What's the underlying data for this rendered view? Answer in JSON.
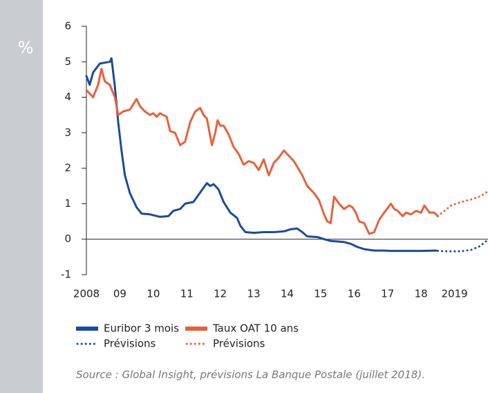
{
  "chart_data": {
    "type": "line",
    "y_label": "%",
    "source": "Source : Global Insight, prévisions La Banque Postale (juillet 2018).",
    "xlim": [
      2008,
      2020
    ],
    "xticks": [
      {
        "value": 2008,
        "label": "2008"
      },
      {
        "value": 2009,
        "label": "09"
      },
      {
        "value": 2010,
        "label": "10"
      },
      {
        "value": 2011,
        "label": "11"
      },
      {
        "value": 2012,
        "label": "12"
      },
      {
        "value": 2013,
        "label": "13"
      },
      {
        "value": 2014,
        "label": "14"
      },
      {
        "value": 2015,
        "label": "15"
      },
      {
        "value": 2016,
        "label": "16"
      },
      {
        "value": 2017,
        "label": "17"
      },
      {
        "value": 2018,
        "label": "18"
      },
      2019
    ],
    "ylim": [
      -1,
      6
    ],
    "yticks": [
      -1,
      0,
      1,
      2,
      3,
      4,
      5,
      6
    ],
    "grid": false,
    "series": [
      {
        "name": "Euribor 3 mois",
        "color": "#1a4a9e",
        "style": "solid",
        "x": [
          2008.0,
          2008.1,
          2008.2,
          2008.4,
          2008.7,
          2008.75,
          2008.85,
          2008.95,
          2009.05,
          2009.15,
          2009.3,
          2009.5,
          2009.65,
          2009.9,
          2010.2,
          2010.45,
          2010.6,
          2010.8,
          2010.95,
          2011.2,
          2011.35,
          2011.5,
          2011.6,
          2011.7,
          2011.8,
          2011.95,
          2012.1,
          2012.3,
          2012.5,
          2012.6,
          2012.75,
          2013.0,
          2013.3,
          2013.6,
          2013.9,
          2014.1,
          2014.3,
          2014.45,
          2014.6,
          2014.9,
          2015.1,
          2015.3,
          2015.7,
          2015.9,
          2016.1,
          2016.3,
          2016.6,
          2016.9,
          2017.1,
          2017.5,
          2018.0,
          2018.45
        ],
        "values": [
          4.6,
          4.35,
          4.7,
          4.95,
          5.0,
          5.1,
          4.3,
          3.3,
          2.5,
          1.8,
          1.3,
          0.9,
          0.72,
          0.7,
          0.63,
          0.65,
          0.8,
          0.85,
          1.0,
          1.05,
          1.25,
          1.45,
          1.58,
          1.5,
          1.55,
          1.4,
          1.05,
          0.75,
          0.6,
          0.38,
          0.2,
          0.18,
          0.2,
          0.2,
          0.22,
          0.28,
          0.3,
          0.2,
          0.08,
          0.06,
          0.0,
          -0.05,
          -0.08,
          -0.13,
          -0.22,
          -0.28,
          -0.32,
          -0.32,
          -0.33,
          -0.33,
          -0.33,
          -0.32
        ]
      },
      {
        "name": "Taux OAT 10 ans",
        "color": "#e8603a",
        "style": "solid",
        "x": [
          2008.0,
          2008.1,
          2008.2,
          2008.35,
          2008.45,
          2008.55,
          2008.7,
          2008.85,
          2008.95,
          2009.1,
          2009.3,
          2009.4,
          2009.5,
          2009.6,
          2009.75,
          2009.9,
          2010.0,
          2010.1,
          2010.2,
          2010.4,
          2010.5,
          2010.65,
          2010.8,
          2010.95,
          2011.1,
          2011.25,
          2011.4,
          2011.5,
          2011.6,
          2011.75,
          2011.85,
          2011.92,
          2012.0,
          2012.1,
          2012.25,
          2012.4,
          2012.55,
          2012.7,
          2012.85,
          2013.0,
          2013.15,
          2013.3,
          2013.45,
          2013.6,
          2013.75,
          2013.9,
          2014.0,
          2014.2,
          2014.45,
          2014.6,
          2014.8,
          2014.95,
          2015.1,
          2015.2,
          2015.3,
          2015.4,
          2015.55,
          2015.7,
          2015.85,
          2015.95,
          2016.05,
          2016.15,
          2016.3,
          2016.45,
          2016.6,
          2016.75,
          2016.9,
          2017.1,
          2017.2,
          2017.3,
          2017.45,
          2017.55,
          2017.7,
          2017.85,
          2018.0,
          2018.1,
          2018.25,
          2018.4,
          2018.5
        ],
        "values": [
          4.2,
          4.1,
          4.0,
          4.35,
          4.8,
          4.45,
          4.35,
          4.0,
          3.5,
          3.6,
          3.65,
          3.8,
          3.95,
          3.75,
          3.6,
          3.5,
          3.55,
          3.45,
          3.55,
          3.45,
          3.05,
          3.0,
          2.65,
          2.75,
          3.3,
          3.6,
          3.7,
          3.5,
          3.4,
          2.65,
          3.0,
          3.35,
          3.2,
          3.2,
          2.95,
          2.6,
          2.4,
          2.1,
          2.2,
          2.15,
          1.95,
          2.25,
          1.8,
          2.15,
          2.3,
          2.5,
          2.4,
          2.2,
          1.8,
          1.5,
          1.3,
          1.1,
          0.7,
          0.5,
          0.45,
          1.2,
          1.0,
          0.85,
          0.95,
          0.9,
          0.75,
          0.5,
          0.45,
          0.15,
          0.2,
          0.55,
          0.75,
          1.0,
          0.85,
          0.8,
          0.65,
          0.75,
          0.7,
          0.8,
          0.75,
          0.95,
          0.75,
          0.75,
          0.65
        ]
      },
      {
        "name": "Prévisions",
        "color": "#1a4a9e",
        "style": "dotted",
        "x": [
          2018.5,
          2018.8,
          2019.2,
          2019.5,
          2019.75,
          2020.0
        ],
        "values": [
          -0.33,
          -0.34,
          -0.34,
          -0.3,
          -0.2,
          -0.02
        ]
      },
      {
        "name": "Prévisions",
        "color": "#e8603a",
        "style": "dotted",
        "x": [
          2018.5,
          2018.7,
          2018.9,
          2019.2,
          2019.5,
          2019.8,
          2020.0
        ],
        "values": [
          0.65,
          0.8,
          0.95,
          1.05,
          1.12,
          1.22,
          1.35
        ]
      }
    ]
  }
}
